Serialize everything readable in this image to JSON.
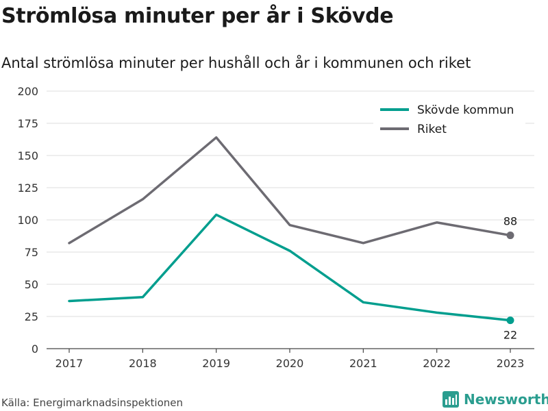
{
  "title": "Strömlösa minuter per år i Skövde",
  "subtitle": "Antal strömlösa minuter per hushåll och år i kommunen och riket",
  "source": "Källa: Energimarknadsinspektionen",
  "brand": {
    "name": "Newsworthy",
    "icon": "bar-chart-logo-icon"
  },
  "colors": {
    "skovde": "#009e8e",
    "riket": "#6d6b72",
    "grid": "#dddddd",
    "axis": "#444444",
    "brand": "#2a9d8f"
  },
  "chart_data": {
    "type": "line",
    "x": [
      "2017",
      "2018",
      "2019",
      "2020",
      "2021",
      "2022",
      "2023"
    ],
    "ylim": [
      0,
      200
    ],
    "yticks": [
      0,
      25,
      50,
      75,
      100,
      125,
      150,
      175,
      200
    ],
    "grid": true,
    "legend": "top-right",
    "series": [
      {
        "name": "Skövde kommun",
        "color": "#009e8e",
        "values": [
          37,
          40,
          104,
          76,
          36,
          28,
          22
        ],
        "end_label": "22"
      },
      {
        "name": "Riket",
        "color": "#6d6b72",
        "values": [
          82,
          116,
          164,
          96,
          82,
          98,
          88
        ],
        "end_label": "88"
      }
    ]
  }
}
